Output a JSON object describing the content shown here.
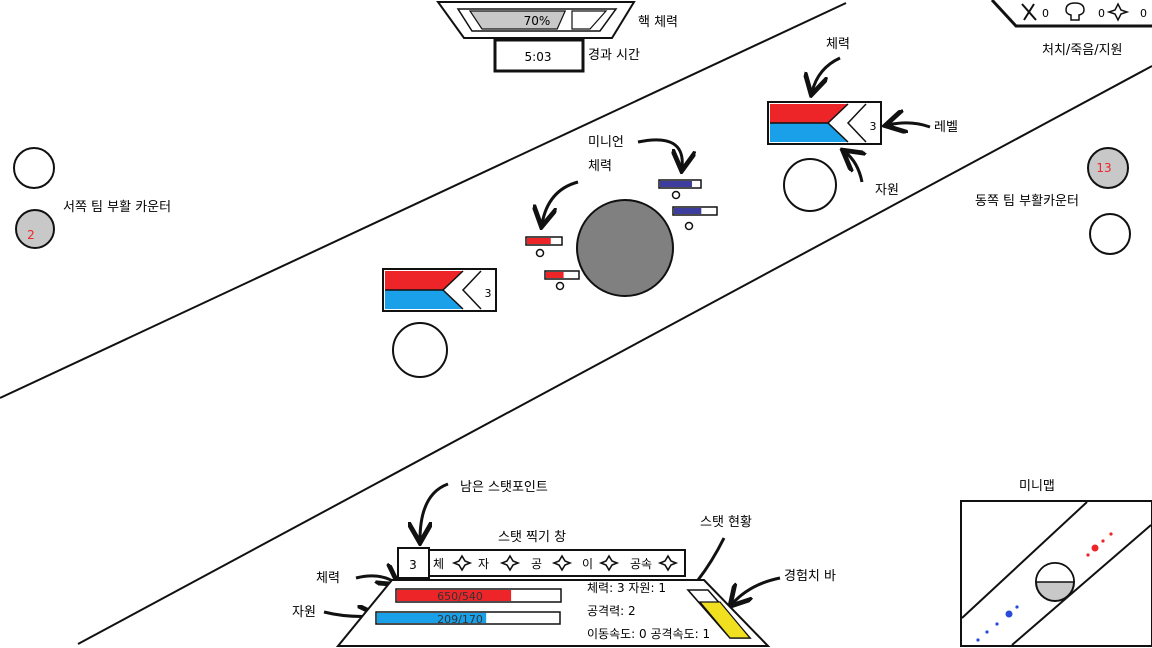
{
  "core": {
    "hp_value": 0.7,
    "hp_text": "70%",
    "hp_label": "핵 체력",
    "time_value": "5:03",
    "time_label": "경과 시간"
  },
  "scoreboard": {
    "kills": "0",
    "deaths": "0",
    "assists": "0",
    "label": "처치/죽음/지원",
    "kill_icon": "crossed-swords-icon",
    "death_icon": "skull-icon",
    "assist_icon": "four-point-star-icon"
  },
  "west_respawn": {
    "label": "서쪽 팀 부활 카운터",
    "count": "2"
  },
  "east_respawn": {
    "label": "동쪽 팀 부활카운터",
    "count": "13"
  },
  "annotations": {
    "hero_hp": "체력",
    "level": "레벨",
    "hero_resource": "자원",
    "minion": "미니언",
    "minion_hp": "체력",
    "stat_points": "남은 스탯포인트",
    "stat_window": "스탯 찍기 창",
    "stat_status": "스탯 현황",
    "exp_bar": "경험치 바",
    "player_hp": "체력",
    "player_resource": "자원",
    "minimap": "미니맵"
  },
  "east_hero": {
    "level": "3",
    "hp": 0.6,
    "resource": 0.7
  },
  "west_hero": {
    "level": "3",
    "hp": 0.6,
    "resource": 0.7
  },
  "minions": {
    "blue": [
      0.8,
      0.65
    ],
    "red": [
      0.7,
      0.55
    ]
  },
  "stat_window": {
    "points": "3",
    "stats": [
      {
        "label": "체",
        "icon": "four-point-star-icon"
      },
      {
        "label": "자",
        "icon": "four-point-star-icon"
      },
      {
        "label": "공",
        "icon": "four-point-star-icon"
      },
      {
        "label": "이",
        "icon": "four-point-star-icon"
      },
      {
        "label": "공속",
        "icon": "four-point-star-icon"
      }
    ]
  },
  "player": {
    "hp_text": "650/540",
    "hp": 0.7,
    "resource_text": "209/170",
    "resource": 0.6,
    "exp": 0.55
  },
  "stat_status": {
    "line1": "체력: 3   자원: 1",
    "line2": "공격력: 2",
    "line3": "이동속도: 0  공격속도: 1"
  },
  "colors": {
    "red": "#ee2528",
    "blue": "#1aa0e8",
    "navy": "#3d3d9e",
    "yellow": "#f0e020",
    "gray": "#808080",
    "light_gray": "#c8c8c8"
  }
}
